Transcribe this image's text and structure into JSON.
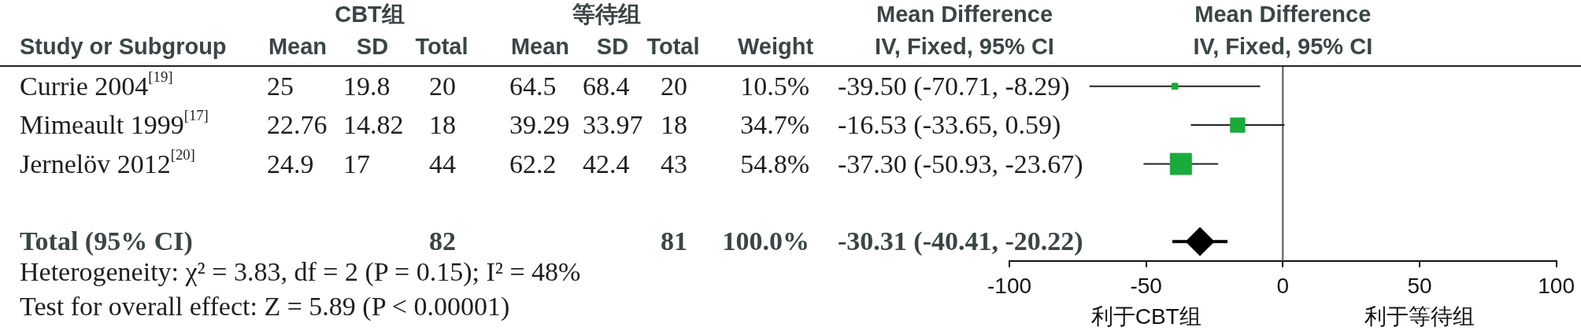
{
  "chart_data": [
    {
      "type": "other",
      "ylabel": "Study or Subgroup",
      "categories": [
        "Mean",
        "SD",
        "Total",
        "Mean",
        "SD",
        "Total",
        "Weight",
        "IV, Fixed, 95% CI"
      ],
      "y_categories": [
        "Currie 2004$^{[19]}$",
        "Mimeault 1999$^{[17]}$",
        "Jernelöv 2012$^{[20]}$",
        null,
        "Total (95% CI)"
      ],
      "cell_labels": [
        [
          "25",
          "19.8",
          "20",
          "64.5",
          "68.4",
          "20",
          "10.5%",
          "-39.50 (-70.71, -8.29)"
        ],
        [
          "22.76",
          "14.82",
          "18",
          "39.29",
          "33.97",
          "18",
          "34.7%",
          "-16.53 (-33.65, 0.59)"
        ],
        [
          "24.9",
          "17",
          "44",
          "62.2",
          "42.4",
          "43",
          "54.8%",
          "-37.30 (-50.93, -23.67)"
        ],
        [
          null,
          null,
          null,
          null,
          null,
          null,
          null,
          null
        ],
        [
          null,
          null,
          "82",
          null,
          null,
          "81",
          "100.0%",
          "-30.31 (-40.41, -20.22)"
        ]
      ],
      "annotations": [
        "CBT组",
        "等待组",
        "Mean Difference",
        "Heterogeneity: χ² = 3.83, df = 2 (P = 0.15); I² = 48%",
        "Test for overall effect: Z = 5.89 (P < 0.00001)"
      ]
    },
    {
      "type": "scatter",
      "orientation": "horizontal",
      "title": "Mean Difference",
      "subtitle": "IV, Fixed, 95% CI",
      "categories": [
        null,
        null,
        null,
        null,
        null
      ],
      "series": [
        {
          "type": "bubble",
          "color": "#1aab3c",
          "marker": "square",
          "values": [
            -39.5,
            -16.53,
            -37.3,
            null,
            null
          ],
          "errors": [
            [
              -70.71,
              -8.29
            ],
            [
              -33.65,
              0.59
            ],
            [
              -50.93,
              -23.67
            ],
            null,
            null
          ],
          "sizes": [
            0.08,
            0.46,
            1,
            null,
            null
          ]
        },
        {
          "color": "#000000",
          "marker": "diamond",
          "values": [
            null,
            null,
            null,
            null,
            -30.31
          ],
          "errors": [
            null,
            null,
            null,
            null,
            [
              -40.41,
              -20.22
            ]
          ]
        }
      ],
      "xlim": [
        -100,
        100
      ],
      "xticks": [
        -100,
        -50,
        0,
        50,
        100
      ],
      "ref_lines": [
        {
          "axis": "x",
          "value": 0,
          "color": "#555555"
        }
      ],
      "annotations": [
        "利于CBT组",
        "利于等待组"
      ]
    }
  ]
}
